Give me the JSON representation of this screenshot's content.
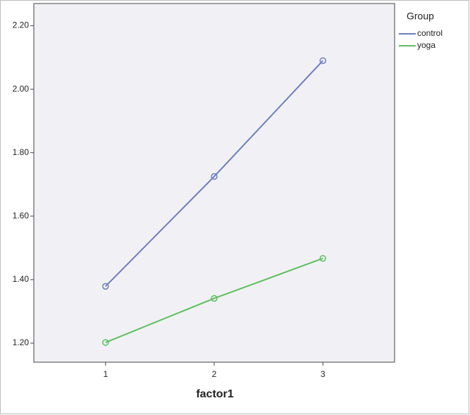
{
  "chart_data": {
    "type": "line",
    "xlabel": "factor1",
    "legend_title": "Group",
    "legend": "right",
    "x": [
      1,
      2,
      3
    ],
    "xlim": [
      0.34,
      3.66
    ],
    "xticks": [
      1,
      2,
      3
    ],
    "ylim": [
      1.14,
      2.27
    ],
    "yticks": [
      {
        "value": 1.2,
        "label": "1.20"
      },
      {
        "value": 1.4,
        "label": "1.40"
      },
      {
        "value": 1.6,
        "label": "1.60"
      },
      {
        "value": 1.8,
        "label": "1.80"
      },
      {
        "value": 2.0,
        "label": "2.00"
      },
      {
        "value": 2.2,
        "label": "2.20"
      }
    ],
    "series": [
      {
        "name": "control",
        "color": "#6a7ec0",
        "values": [
          1.379,
          1.725,
          2.09
        ]
      },
      {
        "name": "yoga",
        "color": "#5cbf5c",
        "values": [
          1.202,
          1.341,
          1.467
        ]
      }
    ]
  }
}
